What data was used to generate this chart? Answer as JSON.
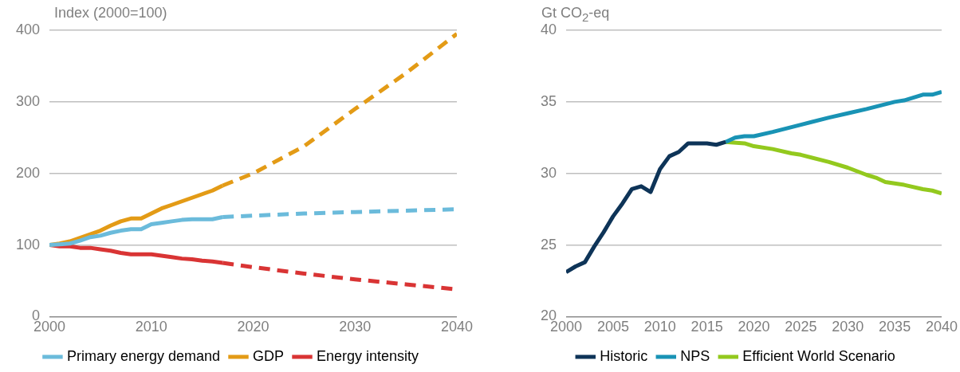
{
  "chart_data": [
    {
      "type": "line",
      "ylabel": "Index (2000=100)",
      "xlim": [
        2000,
        2040
      ],
      "xticks": [
        2000,
        2010,
        2020,
        2030,
        2040
      ],
      "ylim": [
        0,
        400
      ],
      "yticks": [
        0,
        100,
        200,
        300,
        400
      ],
      "grid": "y",
      "legend": "bottom",
      "marker": "none",
      "series": [
        {
          "name": "Primary energy demand",
          "color": "#6bbbdb",
          "line_style": "solid",
          "x": [
            2000,
            2001,
            2002,
            2003,
            2004,
            2005,
            2006,
            2007,
            2008,
            2009,
            2010,
            2011,
            2012,
            2013,
            2014,
            2015,
            2016,
            2017
          ],
          "values": [
            100,
            101,
            102,
            106,
            111,
            113,
            117,
            120,
            122,
            122,
            129,
            131,
            133,
            135,
            136,
            136,
            136,
            139
          ]
        },
        {
          "name": "GDP",
          "color": "#e39b16",
          "line_style": "solid",
          "x": [
            2000,
            2001,
            2002,
            2003,
            2004,
            2005,
            2006,
            2007,
            2008,
            2009,
            2010,
            2011,
            2012,
            2013,
            2014,
            2015,
            2016,
            2017
          ],
          "values": [
            100,
            102,
            105,
            110,
            115,
            120,
            127,
            133,
            137,
            137,
            144,
            151,
            156,
            161,
            166,
            171,
            176,
            183
          ]
        },
        {
          "name": "Energy intensity",
          "color": "#d93434",
          "line_style": "solid",
          "x": [
            2000,
            2001,
            2002,
            2003,
            2004,
            2005,
            2006,
            2007,
            2008,
            2009,
            2010,
            2011,
            2012,
            2013,
            2014,
            2015,
            2016,
            2017
          ],
          "values": [
            100,
            98,
            98,
            96,
            96,
            94,
            92,
            89,
            87,
            87,
            87,
            85,
            83,
            81,
            80,
            78,
            77,
            75
          ]
        },
        {
          "color": "#6bbbdb",
          "line_style": "dashed",
          "x": [
            2017,
            2020,
            2025,
            2030,
            2035,
            2040
          ],
          "values": [
            139,
            141,
            144,
            146,
            148,
            150
          ]
        },
        {
          "color": "#e39b16",
          "line_style": "dashed",
          "x": [
            2017,
            2020,
            2025,
            2030,
            2035,
            2040
          ],
          "values": [
            183,
            200,
            238,
            290,
            340,
            395
          ]
        },
        {
          "color": "#d93434",
          "line_style": "dashed",
          "x": [
            2017,
            2020,
            2025,
            2030,
            2035,
            2040
          ],
          "values": [
            75,
            69,
            60,
            52,
            45,
            38
          ]
        }
      ]
    },
    {
      "type": "line",
      "ylabel": "Gt CO$_{2}$-eq",
      "xlim": [
        2000,
        2040
      ],
      "xticks": [
        2000,
        2005,
        2010,
        2015,
        2020,
        2025,
        2030,
        2035,
        2040
      ],
      "ylim": [
        20,
        40
      ],
      "yticks": [
        20,
        25,
        30,
        35,
        40
      ],
      "grid": "y",
      "legend": "bottom",
      "marker": "none",
      "series": [
        {
          "name": "Historic",
          "color": "#0e3458",
          "line_style": "solid",
          "x": [
            2000,
            2001,
            2002,
            2003,
            2004,
            2005,
            2006,
            2007,
            2008,
            2009,
            2010,
            2011,
            2012,
            2013,
            2014,
            2015,
            2016,
            2017
          ],
          "values": [
            23.1,
            23.5,
            23.8,
            24.9,
            25.9,
            27.0,
            27.9,
            28.9,
            29.1,
            28.7,
            30.3,
            31.2,
            31.5,
            32.1,
            32.1,
            32.1,
            32.0,
            32.2
          ]
        },
        {
          "name": "NPS",
          "color": "#1993b5",
          "line_style": "solid",
          "x": [
            2017,
            2018,
            2019,
            2020,
            2022,
            2025,
            2028,
            2030,
            2032,
            2035,
            2036,
            2038,
            2039,
            2040
          ],
          "values": [
            32.2,
            32.5,
            32.6,
            32.6,
            32.9,
            33.4,
            33.9,
            34.2,
            34.5,
            35.0,
            35.1,
            35.5,
            35.5,
            35.7
          ]
        },
        {
          "name": "Efficient World Scenario",
          "color": "#93c91e",
          "line_style": "solid",
          "x": [
            2017,
            2019,
            2020,
            2022,
            2024,
            2025,
            2028,
            2030,
            2032,
            2033,
            2034,
            2035,
            2036,
            2038,
            2039,
            2040
          ],
          "values": [
            32.2,
            32.1,
            31.9,
            31.7,
            31.4,
            31.3,
            30.8,
            30.4,
            29.9,
            29.7,
            29.4,
            29.3,
            29.2,
            28.9,
            28.8,
            28.6
          ]
        }
      ]
    }
  ]
}
